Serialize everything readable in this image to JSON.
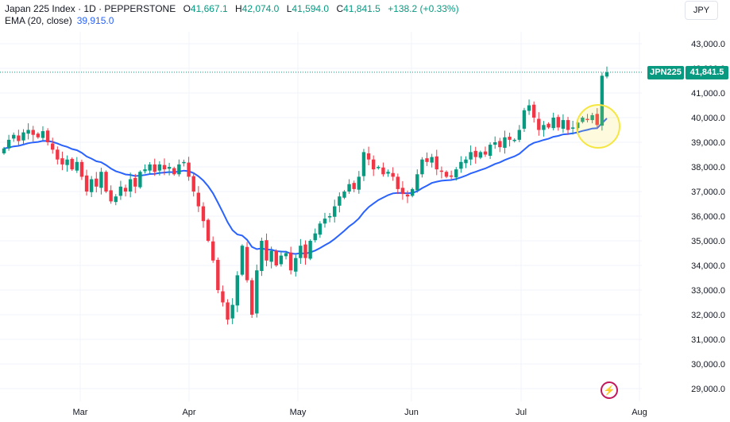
{
  "legend": {
    "title": "Japan 225 Index · 1D · PEPPERSTONE",
    "open_label": "O",
    "open": "41,667.1",
    "high_label": "H",
    "high": "42,074.0",
    "low_label": "L",
    "low": "41,594.0",
    "close_label": "C",
    "close": "41,841.5",
    "change": "+138.2 (+0.33%)",
    "ema_label": "EMA (20, close)",
    "ema_value": "39,915.0"
  },
  "currency": "JPY",
  "price_badge": {
    "symbol": "JPN225",
    "price": "41,841.5"
  },
  "icons": {
    "lightning": "lightning-icon"
  },
  "colors": {
    "up": "#089981",
    "down": "#f23645",
    "ema": "#2962ff",
    "highlight": "#f5e642",
    "price_line": "#089981"
  },
  "chart_data": {
    "type": "candlestick",
    "y_axis": {
      "ylim": [
        28500,
        43800
      ],
      "ticks": [
        29000,
        30000,
        31000,
        32000,
        33000,
        34000,
        35000,
        36000,
        37000,
        38000,
        39000,
        40000,
        41000,
        42000,
        43000
      ],
      "tick_labels": [
        "29,000.0",
        "30,000.0",
        "31,000.0",
        "32,000.0",
        "33,000.0",
        "34,000.0",
        "35,000.0",
        "36,000.0",
        "37,000.0",
        "38,000.0",
        "39,000.0",
        "40,000.0",
        "41,000.0",
        "42,000.0",
        "43,000.0"
      ]
    },
    "x_axis": {
      "labels": [
        "Mar",
        "Apr",
        "May",
        "Jun",
        "Jul",
        "Aug"
      ]
    },
    "last_price": 41841.5,
    "closes": [
      38750,
      39100,
      39300,
      39050,
      39400,
      39500,
      39300,
      39200,
      39450,
      39000,
      38700,
      38300,
      38100,
      38300,
      37900,
      38200,
      37600,
      37000,
      37500,
      37200,
      37800,
      37000,
      36600,
      36800,
      37200,
      37000,
      37500,
      37200,
      37800,
      37900,
      38100,
      37800,
      38100,
      37900,
      38000,
      37700,
      38100,
      38200,
      37600,
      37000,
      36400,
      35800,
      35000,
      34200,
      33000,
      32500,
      31800,
      32400,
      33600,
      34800,
      33400,
      32000,
      33800,
      35000,
      34200,
      34600,
      34000,
      34400,
      34500,
      33800,
      34300,
      34800,
      34300,
      35000,
      35300,
      35700,
      35900,
      36000,
      36400,
      36800,
      37000,
      37300,
      37100,
      37600,
      38600,
      38300,
      37900,
      38000,
      37700,
      37800,
      37600,
      37100,
      36900,
      36800,
      37100,
      37700,
      38300,
      38200,
      38400,
      37900,
      37800,
      37600,
      37600,
      37900,
      38200,
      38300,
      38600,
      38400,
      38600,
      38500,
      38900,
      39000,
      38800,
      39200,
      39100,
      39100,
      39500,
      40300,
      40500,
      40000,
      39500,
      39700,
      39600,
      40000,
      39600,
      39900,
      39500,
      39600,
      39800,
      40000,
      39900,
      40100,
      39700,
      41700,
      41841.5
    ],
    "ema": {
      "name": "EMA (20, close)",
      "last": 39915.0
    }
  }
}
